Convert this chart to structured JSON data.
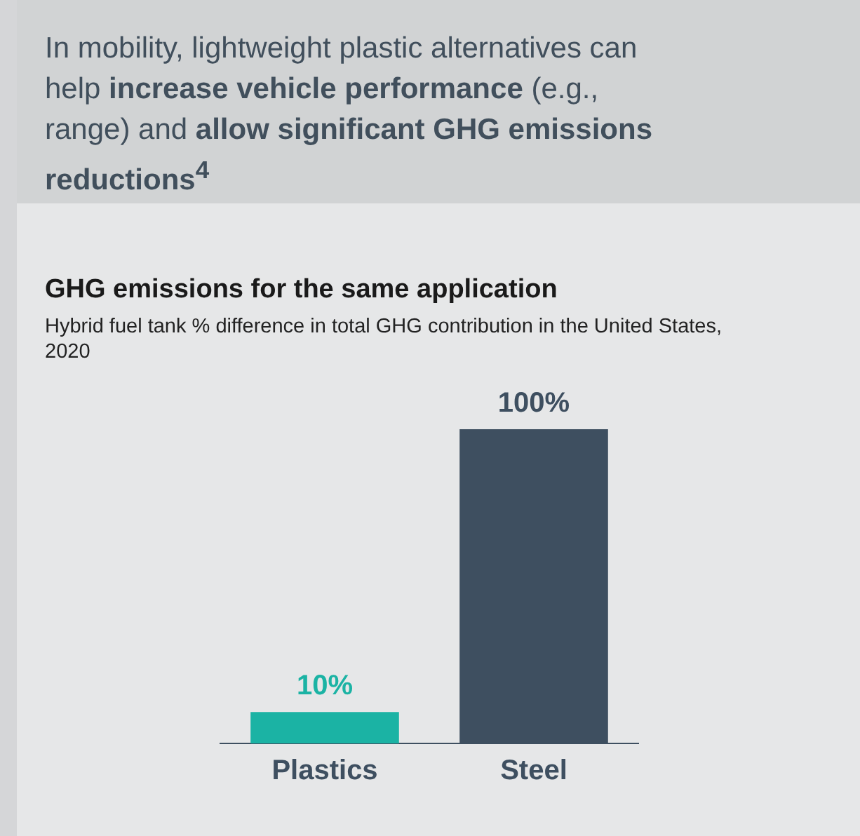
{
  "chart_data": {
    "type": "bar",
    "title": "GHG emissions for the same application",
    "subtitle": "Hybrid fuel tank % difference in total GHG contribution in the United States, 2020",
    "annotations": [
      "In mobility, lightweight plastic alternatives can help ",
      "increase vehicle performance",
      " (e.g., range) and ",
      "allow significant GHG emissions reductions$^{4}$"
    ],
    "categories": [
      "Plastics",
      "Steel"
    ],
    "values": [
      10,
      100
    ],
    "colors": [
      "#1bb3a4",
      "#3e4f60"
    ],
    "value_labels": [
      "10%",
      "100%"
    ],
    "grid": false,
    "legend": false
  }
}
